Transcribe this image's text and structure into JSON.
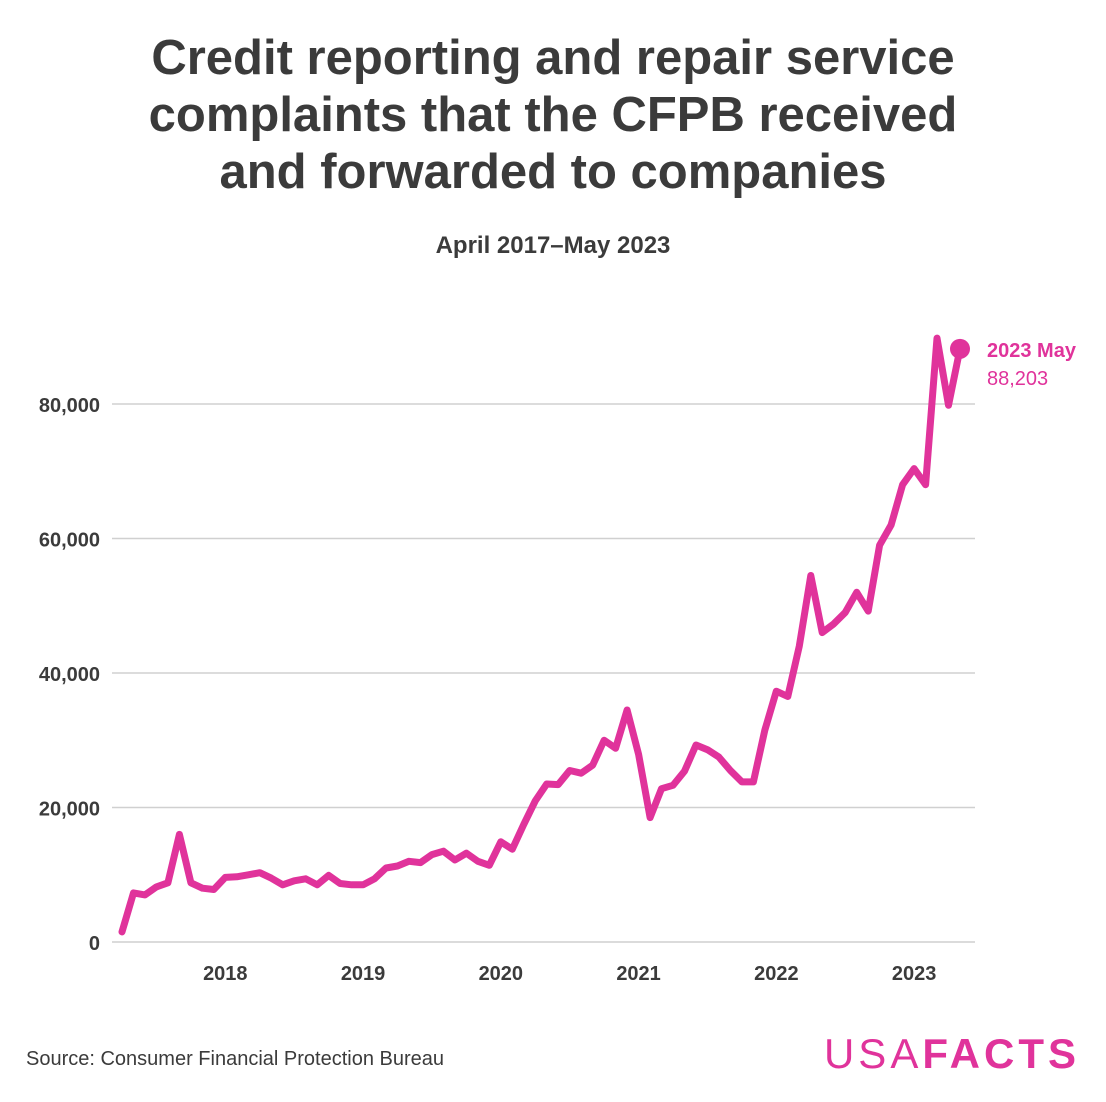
{
  "title_lines": [
    "Credit reporting and repair service",
    "complaints that the CFPB received",
    "and forwarded to companies"
  ],
  "subtitle": "April 2017–May 2023",
  "source": "Source: Consumer Financial Protection Bureau",
  "logo": {
    "usa": "USA",
    "facts": "FACTS"
  },
  "colors": {
    "line": "#e0339b",
    "text": "#3b3b3b",
    "grid": "#d0d0d0"
  },
  "chart_data": {
    "type": "line",
    "x_start": "2017-04",
    "x_end": "2023-05",
    "ylim": [
      0,
      90000
    ],
    "yticks": [
      0,
      20000,
      40000,
      60000,
      80000
    ],
    "ytick_labels": [
      "0",
      "20,000",
      "40,000",
      "60,000",
      "80,000"
    ],
    "xtick_labels": [
      "2018",
      "2019",
      "2020",
      "2021",
      "2022",
      "2023"
    ],
    "grid": true,
    "end_annotation": {
      "label": "2023 May",
      "value": "88,203"
    },
    "series": [
      {
        "values": [
          1500,
          7300,
          7000,
          8200,
          8800,
          16000,
          8800,
          8000,
          7800,
          9600,
          9700,
          10000,
          10300,
          9500,
          8500,
          9100,
          9400,
          8500,
          9900,
          8700,
          8500,
          8500,
          9400,
          11000,
          11300,
          12000,
          11800,
          13000,
          13500,
          12200,
          13200,
          12000,
          11400,
          14900,
          13800,
          17500,
          21000,
          23500,
          23400,
          25500,
          25100,
          26300,
          30000,
          28800,
          34500,
          27900,
          18500,
          22800,
          23300,
          25400,
          29300,
          28600,
          27500,
          25500,
          23800,
          23800,
          31500,
          37300,
          36500,
          44000,
          54500,
          46000,
          47300,
          49000,
          52000,
          49200,
          59000,
          62000,
          68000,
          70400,
          68000,
          89800,
          79800,
          88203
        ]
      }
    ]
  }
}
